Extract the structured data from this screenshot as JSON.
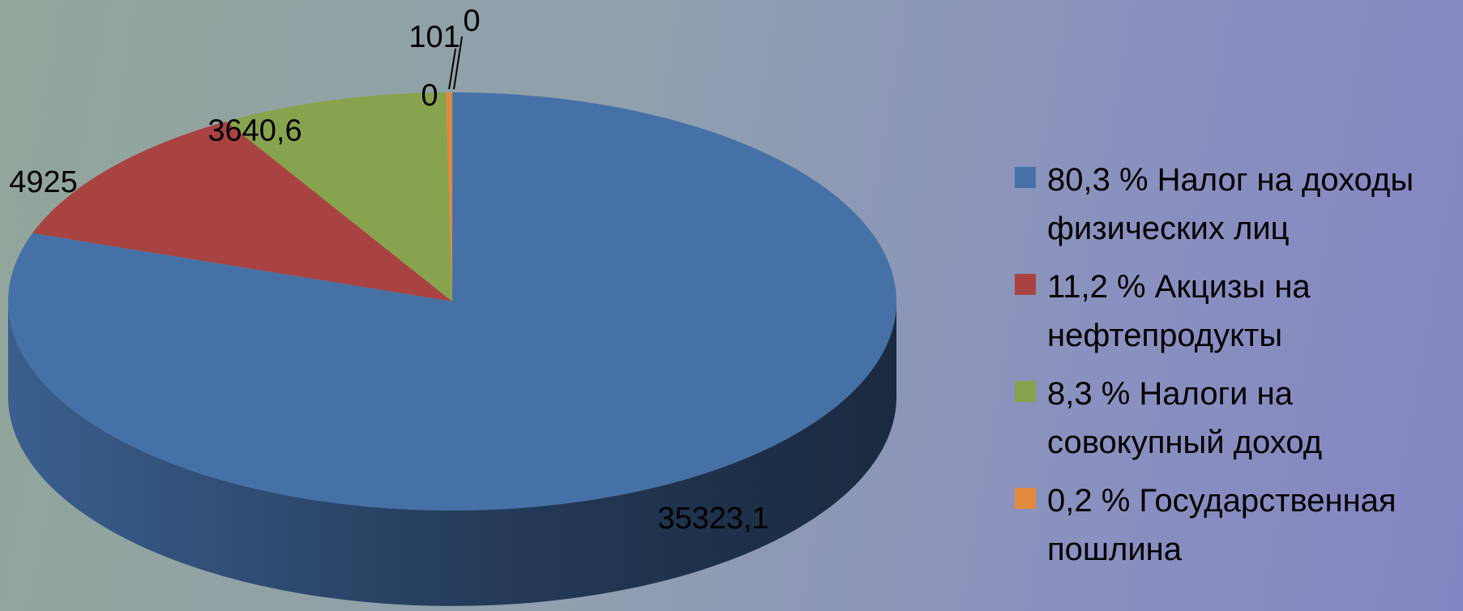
{
  "chart_data": {
    "type": "pie",
    "three_d": true,
    "slices": [
      {
        "value_label": "35323,1",
        "value": 35323.1,
        "legend": "80,3 %  Налог на доходы физических лиц",
        "color": "#4571a7"
      },
      {
        "value_label": "4925",
        "value": 4925,
        "legend": "11,2 %  Акцизы на нефтепродукты",
        "color": "#a84341"
      },
      {
        "value_label": "3640,6",
        "value": 3640.6,
        "legend": "8,3 %  Налоги на совокупный доход",
        "color": "#88a34d"
      },
      {
        "value_label": "101",
        "value": 101,
        "legend": "0,2 %  Государственная пошлина",
        "color": "#e18a3e"
      },
      {
        "value_label": "0",
        "value": 0,
        "legend": "",
        "color": "#8064a2"
      },
      {
        "value_label": "0",
        "value": 0,
        "legend": "",
        "color": "#4bacc6"
      }
    ],
    "legend_placement": "right"
  }
}
